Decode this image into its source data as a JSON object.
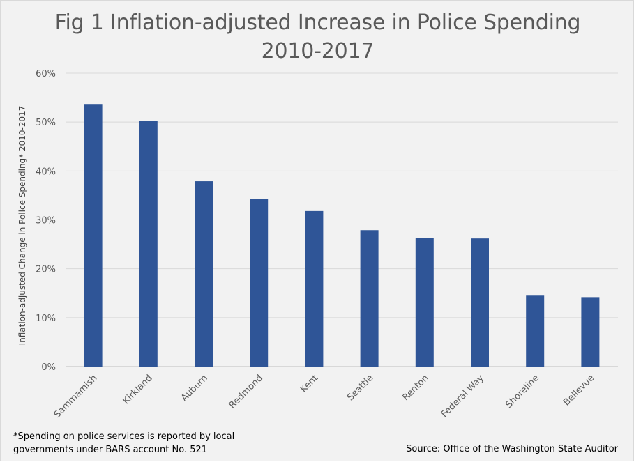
{
  "chart_data": {
    "type": "bar",
    "title_lines": [
      "Fig 1 Inflation-adjusted Increase in Police Spending",
      "2010-2017"
    ],
    "xlabel": "",
    "ylabel": "Inflation-adjusted Change in Police Spending* 2010-2017",
    "categories": [
      "Sammamish",
      "Kirkland",
      "Auburn",
      "Redmond",
      "Kent",
      "Seattle",
      "Renton",
      "Federal Way",
      "Shoreline",
      "Bellevue"
    ],
    "values": [
      53.7,
      50.3,
      37.9,
      34.3,
      31.8,
      27.9,
      26.3,
      26.2,
      14.5,
      14.2
    ],
    "ylim": [
      0,
      60
    ],
    "yticks": [
      0,
      10,
      20,
      30,
      40,
      50,
      60
    ],
    "ytick_labels": [
      "0%",
      "10%",
      "20%",
      "30%",
      "40%",
      "50%",
      "60%"
    ],
    "grid": true,
    "legend": "none",
    "bar_color": "#2f5597"
  },
  "footnotes": {
    "left": "*Spending on police services is reported by local governments under BARS account No. 521",
    "right": "Source: Office of the Washington State Auditor"
  }
}
